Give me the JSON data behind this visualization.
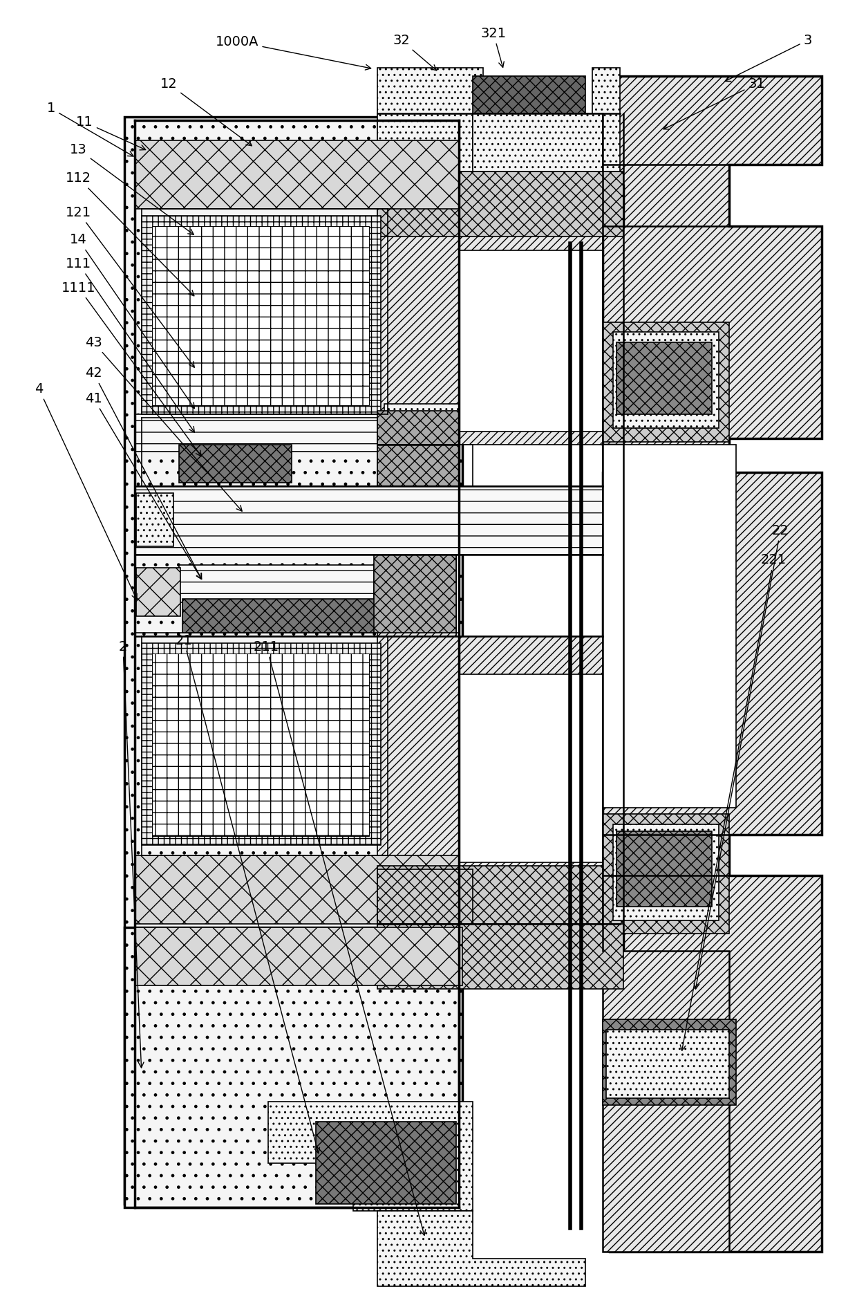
{
  "fig_width": 12.4,
  "fig_height": 19.03,
  "bg_color": "#ffffff"
}
